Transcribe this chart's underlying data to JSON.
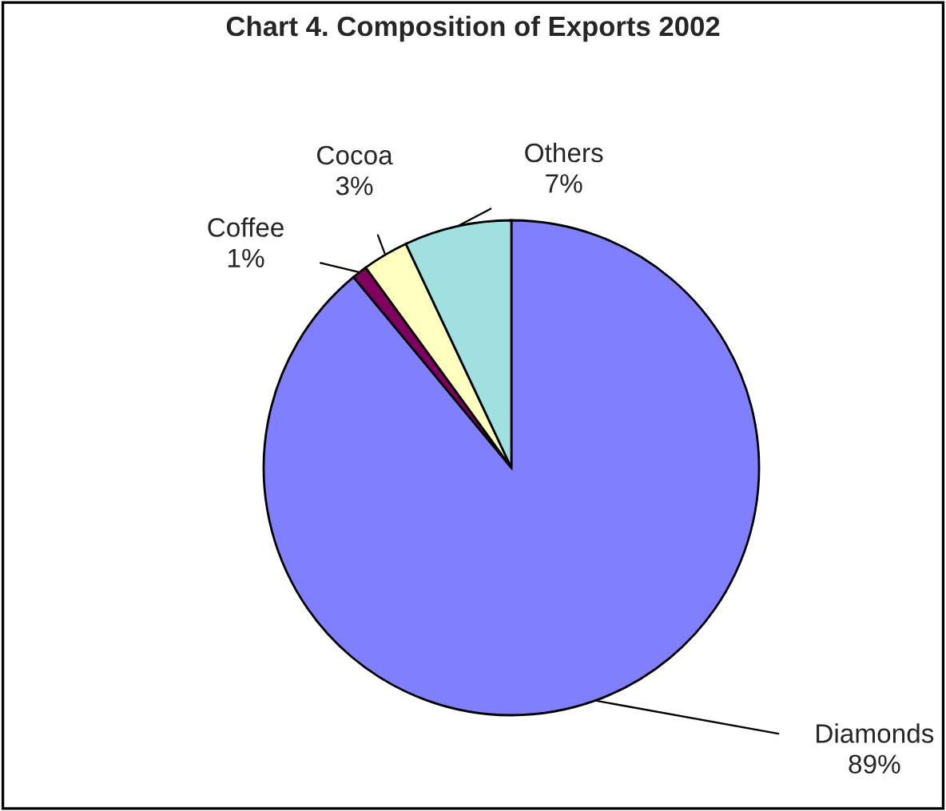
{
  "chart_data": {
    "type": "pie",
    "title": "Chart 4. Composition of Exports 2002",
    "categories": [
      "Diamonds",
      "Coffee",
      "Cocoa",
      "Others"
    ],
    "values": [
      89,
      1,
      3,
      7
    ],
    "colors": [
      "#8080ff",
      "#800060",
      "#ffffc0",
      "#a0e0e0"
    ],
    "value_labels": [
      "89%",
      "1%",
      "3%",
      "7%"
    ]
  }
}
